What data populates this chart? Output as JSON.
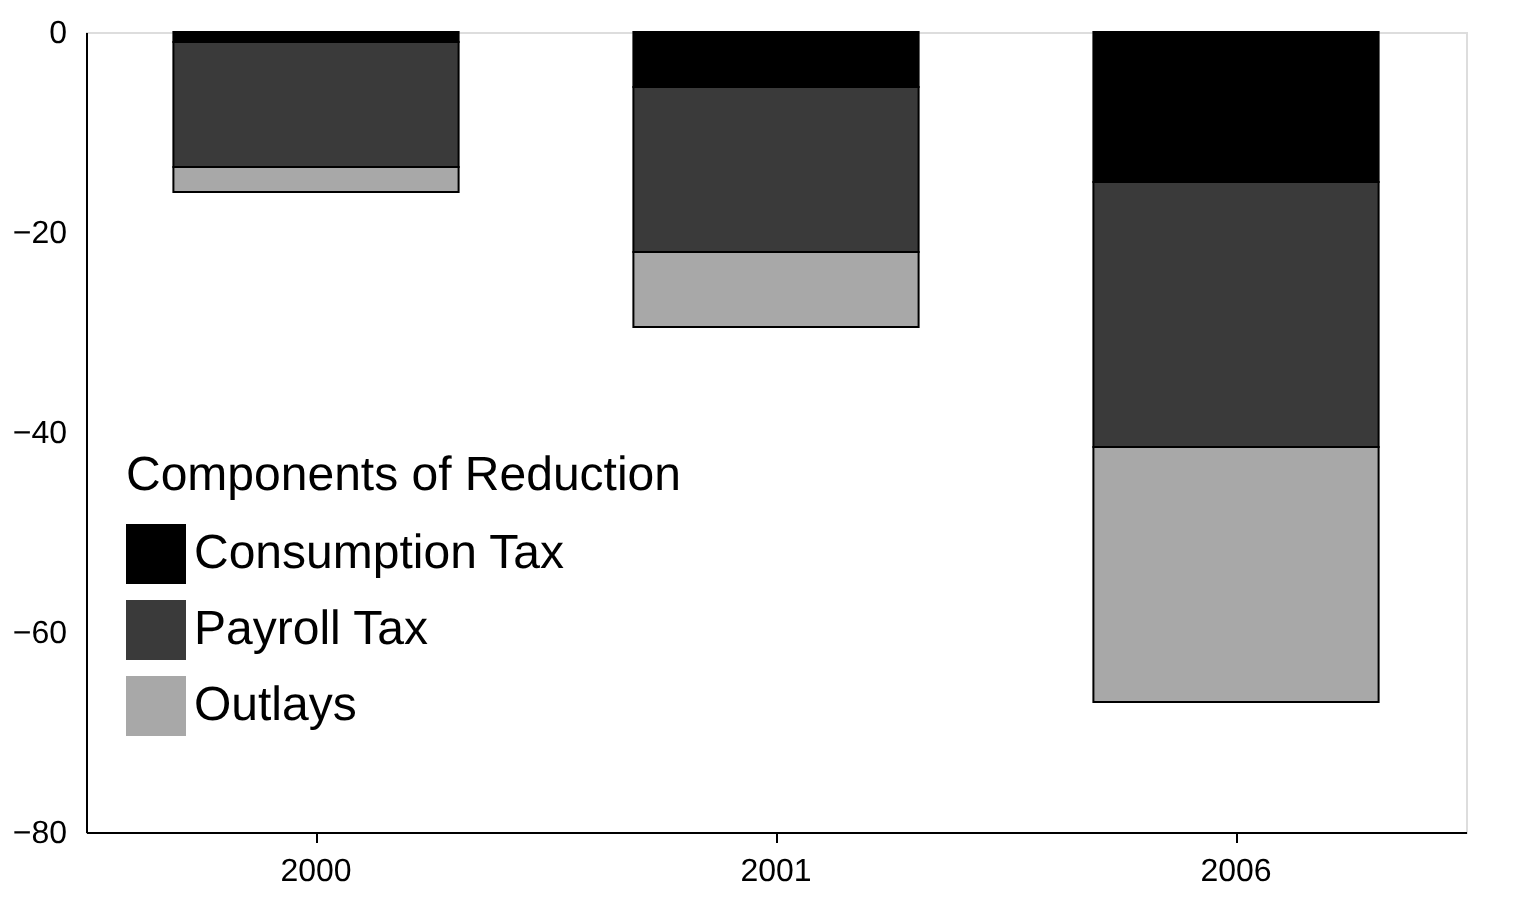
{
  "chart_data": {
    "type": "bar",
    "stacked": true,
    "categories": [
      "2000",
      "2001",
      "2006"
    ],
    "series": [
      {
        "name": "Consumption Tax",
        "color": "#000000",
        "values": [
          -1,
          -5.5,
          -15
        ]
      },
      {
        "name": "Payroll Tax",
        "color": "#3a3a3a",
        "values": [
          -12.5,
          -16.5,
          -26.5
        ]
      },
      {
        "name": "Outlays",
        "color": "#a8a8a8",
        "values": [
          -2.5,
          -7.5,
          -25.5
        ]
      }
    ],
    "legend_title": "Components of Reduction",
    "legend": "bottom left",
    "ylim": [
      -80,
      0
    ],
    "yticks": [
      0,
      -20,
      -40,
      -60,
      -80
    ],
    "grid": false
  }
}
